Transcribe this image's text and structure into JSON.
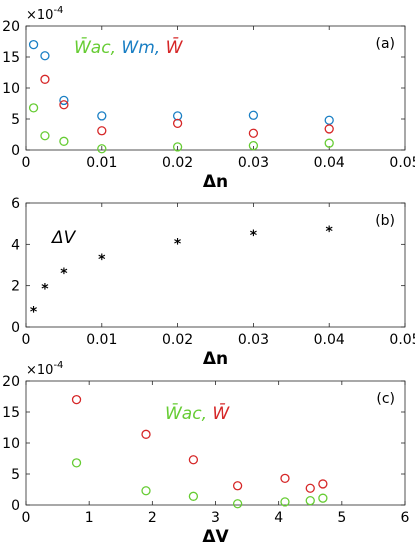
{
  "chart_data": [
    {
      "type": "scatter",
      "panel_label": "(a)",
      "scale_exponent": "×10",
      "scale_power": "-4",
      "xlabel": "Δn",
      "ylabel": "",
      "xlim": [
        0,
        0.05
      ],
      "ylim": [
        0,
        20
      ],
      "x_ticks": [
        "0",
        "0.01",
        "0.02",
        "0.03",
        "0.04",
        "0.05"
      ],
      "y_ticks": [
        "0",
        "5",
        "10",
        "15",
        "20"
      ],
      "legend": [
        {
          "text": "W̄ac,",
          "color": "#66cc33"
        },
        {
          "text": "Wm,",
          "color": "#1a7fc4"
        },
        {
          "text": "W̄",
          "color": "#d62728"
        }
      ],
      "series": [
        {
          "color": "#1a7fc4",
          "marker": "circle",
          "x": [
            0.001,
            0.0025,
            0.005,
            0.01,
            0.02,
            0.03,
            0.04
          ],
          "y": [
            17,
            15.2,
            8,
            5.5,
            5.5,
            5.6,
            4.8
          ]
        },
        {
          "color": "#d62728",
          "marker": "circle",
          "x": [
            0.0025,
            0.005,
            0.01,
            0.02,
            0.03,
            0.04
          ],
          "y": [
            11.4,
            7.3,
            3.1,
            4.3,
            2.7,
            3.4
          ]
        },
        {
          "color": "#66cc33",
          "marker": "circle",
          "x": [
            0.001,
            0.0025,
            0.005,
            0.01,
            0.02,
            0.03,
            0.04
          ],
          "y": [
            6.8,
            2.3,
            1.4,
            0.2,
            0.5,
            0.7,
            1.1
          ]
        }
      ]
    },
    {
      "type": "scatter",
      "panel_label": "(b)",
      "xlabel": "Δn",
      "ylabel": "",
      "annotation": "ΔV",
      "xlim": [
        0,
        0.05
      ],
      "ylim": [
        0,
        6
      ],
      "x_ticks": [
        "0",
        "0.01",
        "0.02",
        "0.03",
        "0.04",
        "0.05"
      ],
      "y_ticks": [
        "0",
        "2",
        "4",
        "6"
      ],
      "series": [
        {
          "color": "#000000",
          "marker": "star",
          "x": [
            0.001,
            0.0025,
            0.005,
            0.01,
            0.02,
            0.03,
            0.04
          ],
          "y": [
            0.8,
            1.9,
            2.65,
            3.35,
            4.1,
            4.5,
            4.7
          ]
        }
      ]
    },
    {
      "type": "scatter",
      "panel_label": "(c)",
      "scale_exponent": "×10",
      "scale_power": "-4",
      "xlabel": "ΔV",
      "ylabel": "",
      "xlim": [
        0,
        6
      ],
      "ylim": [
        0,
        20
      ],
      "x_ticks": [
        "0",
        "1",
        "2",
        "3",
        "4",
        "5",
        "6"
      ],
      "y_ticks": [
        "0",
        "5",
        "10",
        "15",
        "20"
      ],
      "legend": [
        {
          "text": "W̄ac,",
          "color": "#66cc33"
        },
        {
          "text": "W̄",
          "color": "#d62728"
        }
      ],
      "series": [
        {
          "color": "#d62728",
          "marker": "circle",
          "x": [
            0.8,
            1.9,
            2.65,
            3.35,
            4.1,
            4.5,
            4.7
          ],
          "y": [
            17,
            11.4,
            7.3,
            3.1,
            4.3,
            2.7,
            3.4
          ]
        },
        {
          "color": "#66cc33",
          "marker": "circle",
          "x": [
            0.8,
            1.9,
            2.65,
            3.35,
            4.1,
            4.5,
            4.7
          ],
          "y": [
            6.8,
            2.3,
            1.4,
            0.2,
            0.5,
            0.7,
            1.1
          ]
        }
      ]
    }
  ]
}
